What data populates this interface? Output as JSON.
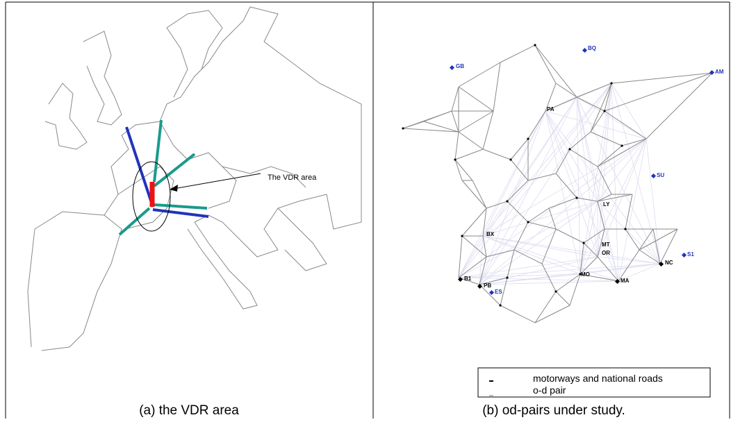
{
  "panels": [
    {
      "annotation": "The VDR area",
      "caption": "(a) the VDR area"
    },
    {
      "labels": [
        "GB",
        "BQ",
        "AM",
        "PA",
        "SU",
        "LY",
        "BX",
        "MT",
        "OR",
        "S1",
        "NC",
        "B1",
        "PB",
        "ES",
        "MO",
        "MA"
      ],
      "legend": [
        "motorways and national roads",
        "o-d pair"
      ],
      "caption": "(b) od-pairs under study."
    }
  ]
}
